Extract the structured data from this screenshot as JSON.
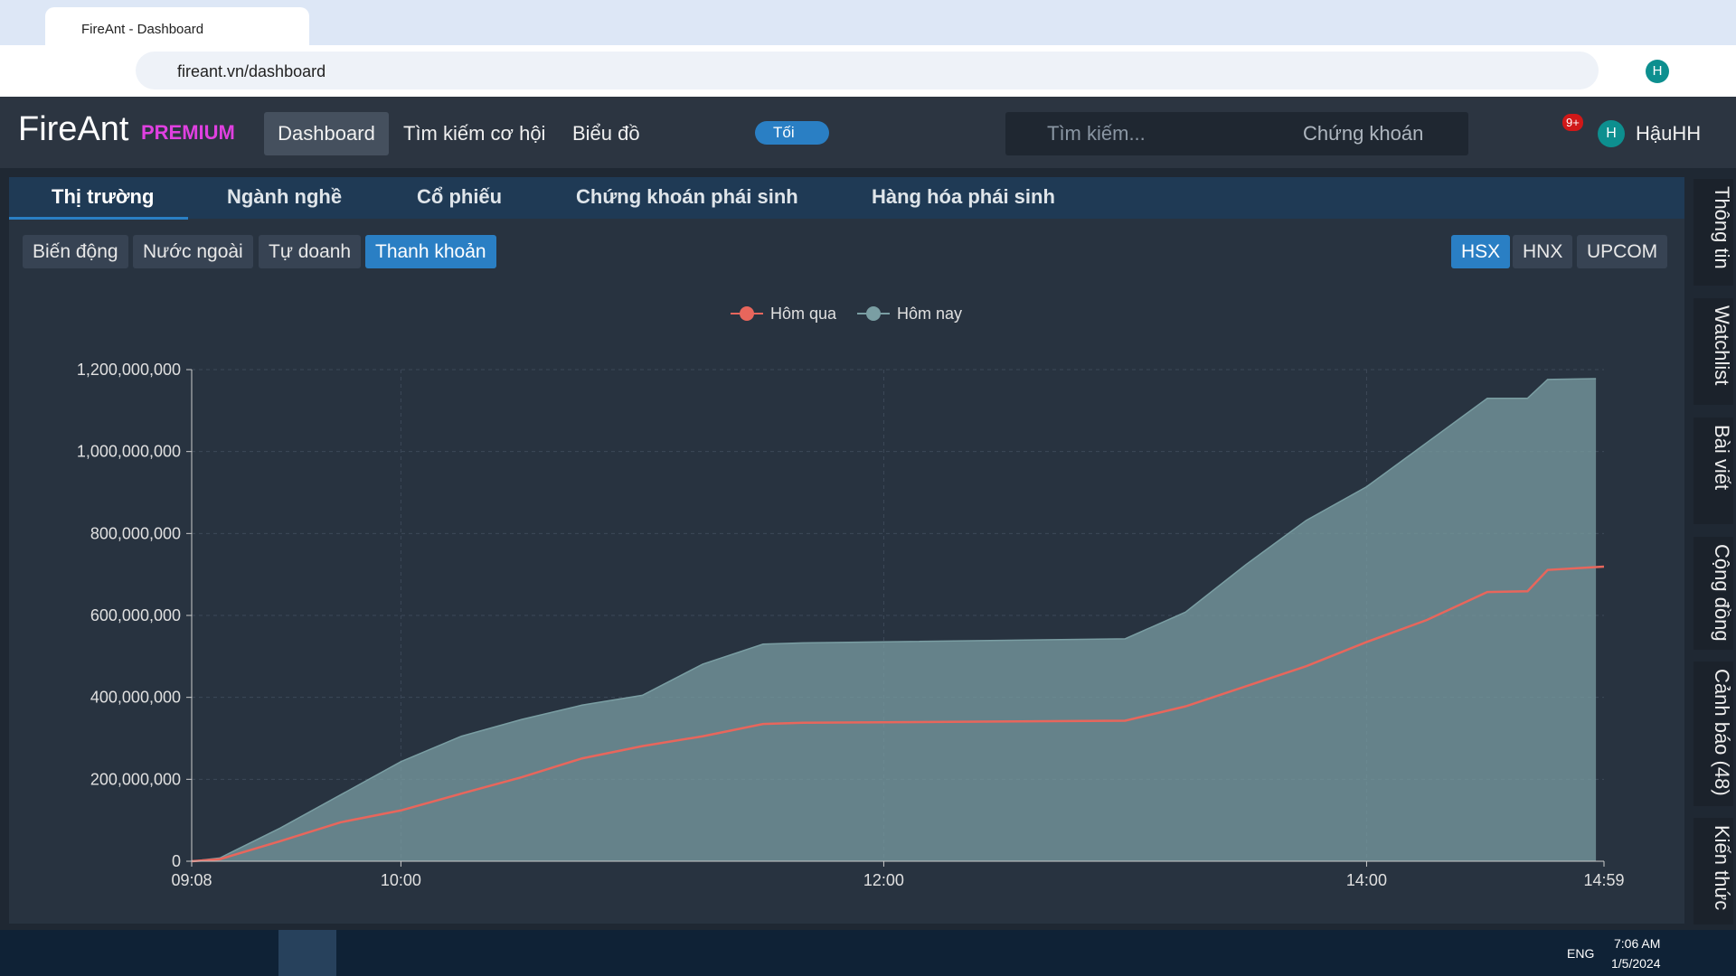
{
  "browser": {
    "tab_title": "FireAnt - Dashboard",
    "url": "fireant.vn/dashboard",
    "profile": "H"
  },
  "nav": {
    "logo": "FireAnt",
    "premium": "PREMIUM",
    "items": [
      "Dashboard",
      "Tìm kiếm cơ hội",
      "Biểu đồ"
    ],
    "toggle": "Tối",
    "search_placeholder": "Tìm kiếm...",
    "search_category": "Chứng khoán",
    "notifications": "9+",
    "avatar": "H",
    "user": "HậuHH"
  },
  "tabs": [
    "Thị trường",
    "Ngành nghề",
    "Cổ phiếu",
    "Chứng khoán phái sinh",
    "Hàng hóa phái sinh"
  ],
  "subtabs": [
    "Biến động",
    "Nước ngoài",
    "Tự doanh",
    "Thanh khoản"
  ],
  "exchanges": [
    "HSX",
    "HNX",
    "UPCOM"
  ],
  "sidebar": [
    "Thông tin",
    "Watchlist",
    "Bài viết",
    "Cộng đồng",
    "Cảnh báo (48)",
    "Kiến thức"
  ],
  "taskbar": {
    "lang": "ENG",
    "time": "7:06 AM",
    "date": "1/5/2024"
  },
  "chart_data": {
    "type": "area",
    "x": [
      "09:08",
      "09:15",
      "09:30",
      "09:45",
      "10:00",
      "10:15",
      "10:30",
      "10:45",
      "11:00",
      "11:15",
      "11:30",
      "11:40",
      "13:00",
      "13:15",
      "13:30",
      "13:45",
      "14:00",
      "14:15",
      "14:30",
      "14:40",
      "14:45",
      "14:57",
      "14:59"
    ],
    "series": [
      {
        "name": "Hôm qua",
        "color": "#e8665c",
        "values": [
          0,
          5000000,
          49000000,
          95000000,
          124000000,
          165000000,
          205000000,
          251000000,
          281000000,
          305000000,
          335000000,
          338000000,
          343000000,
          378000000,
          427000000,
          476000000,
          535000000,
          589000000,
          657000000,
          659000000,
          711000000,
          718000000,
          719000000
        ]
      },
      {
        "name": "Hôm nay",
        "color": "#7a9ea3",
        "values": [
          0,
          8000000,
          81000000,
          162000000,
          243000000,
          305000000,
          346000000,
          381000000,
          405000000,
          481000000,
          530000000,
          533000000,
          543000000,
          608000000,
          724000000,
          832000000,
          914000000,
          1022000000,
          1130000000,
          1130000000,
          1176000000,
          1178000000,
          null
        ]
      }
    ],
    "xlim": [
      "09:08",
      "14:59"
    ],
    "xticks": [
      "09:08",
      "10:00",
      "12:00",
      "14:00",
      "14:59"
    ],
    "ylim": [
      0,
      1200000000
    ],
    "yticks": [
      0,
      {
        "value": 200000000,
        "label": "200,000,000"
      },
      {
        "value": 400000000,
        "label": "400,000,000"
      },
      {
        "value": 600000000,
        "label": "600,000,000"
      },
      {
        "value": 800000000,
        "label": "800,000,000"
      },
      {
        "value": 1000000000,
        "label": "1,000,000,000"
      },
      {
        "value": 1200000000,
        "label": "1,200,000,000"
      }
    ],
    "grid": true
  }
}
